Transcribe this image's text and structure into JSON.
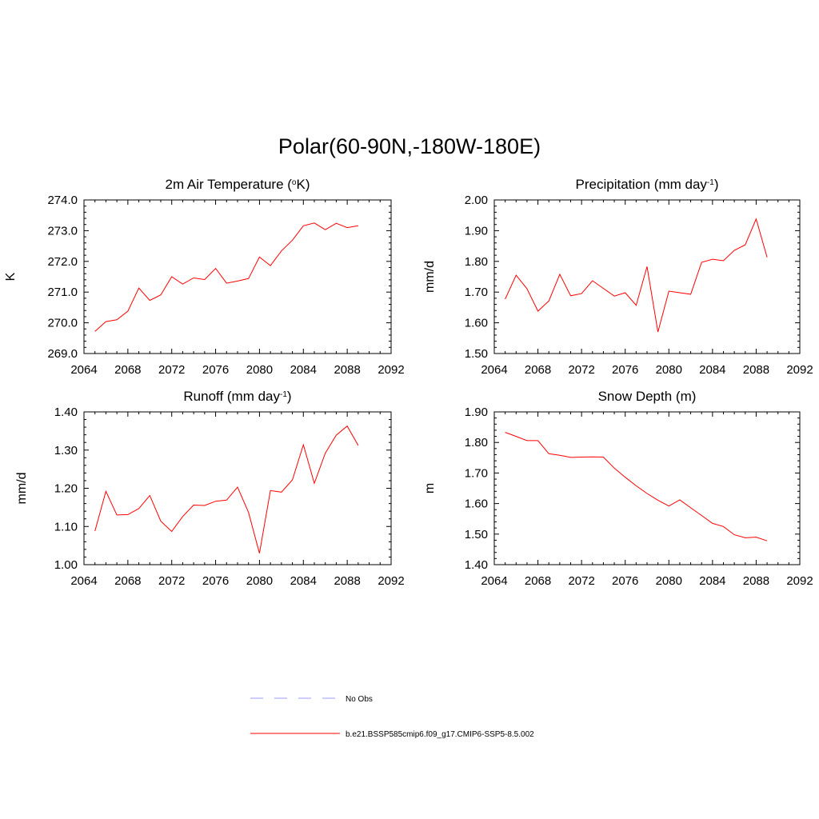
{
  "figure": {
    "title": "Polar(60-90N,-180W-180E)"
  },
  "legend": [
    {
      "label": "No Obs",
      "color": "#9b9bff",
      "dashed": true
    },
    {
      "label": "b.e21.BSSP585cmip6.f09_g17.CMIP6-SSP5-8.5.002",
      "color": "#ff0000",
      "dashed": false
    }
  ],
  "chart_data": [
    {
      "type": "line",
      "title": "2m Air Temperature (",
      "title_sup": "o",
      "title_after": "K)",
      "ylabel": "K",
      "xlim": [
        2064,
        2092
      ],
      "ylim": [
        269.0,
        274.0
      ],
      "xticks": [
        2064,
        2068,
        2072,
        2076,
        2080,
        2084,
        2088,
        2092
      ],
      "yticks": [
        "269.0",
        "270.0",
        "271.0",
        "272.0",
        "273.0",
        "274.0"
      ],
      "series": [
        {
          "color": "#ff0000",
          "x": [
            2065,
            2066,
            2067,
            2068,
            2069,
            2070,
            2071,
            2072,
            2073,
            2074,
            2075,
            2076,
            2077,
            2078,
            2079,
            2080,
            2081,
            2082,
            2083,
            2084,
            2085,
            2086,
            2087,
            2088,
            2089
          ],
          "y": [
            269.72,
            270.04,
            270.1,
            270.38,
            271.13,
            270.73,
            270.91,
            271.5,
            271.26,
            271.46,
            271.41,
            271.77,
            271.29,
            271.36,
            271.44,
            272.14,
            271.86,
            272.34,
            272.69,
            273.16,
            273.25,
            273.03,
            273.24,
            273.1,
            273.16
          ]
        }
      ]
    },
    {
      "type": "line",
      "title": "Precipitation (mm day",
      "title_sup": "-1",
      "title_after": ")",
      "ylabel": "mm/d",
      "xlim": [
        2064,
        2092
      ],
      "ylim": [
        1.5,
        2.0
      ],
      "xticks": [
        2064,
        2068,
        2072,
        2076,
        2080,
        2084,
        2088,
        2092
      ],
      "yticks": [
        "1.50",
        "1.60",
        "1.70",
        "1.80",
        "1.90",
        "2.00"
      ],
      "series": [
        {
          "color": "#ff0000",
          "x": [
            2065,
            2066,
            2067,
            2068,
            2069,
            2070,
            2071,
            2072,
            2073,
            2074,
            2075,
            2076,
            2077,
            2078,
            2079,
            2080,
            2081,
            2082,
            2083,
            2084,
            2085,
            2086,
            2087,
            2088,
            2089
          ],
          "y": [
            1.677,
            1.755,
            1.711,
            1.638,
            1.671,
            1.758,
            1.688,
            1.695,
            1.737,
            1.712,
            1.687,
            1.698,
            1.657,
            1.783,
            1.57,
            1.703,
            1.698,
            1.693,
            1.797,
            1.807,
            1.802,
            1.836,
            1.854,
            1.938,
            1.813
          ]
        }
      ]
    },
    {
      "type": "line",
      "title": "Runoff (mm day",
      "title_sup": "-1",
      "title_after": ")",
      "ylabel": "mm/d",
      "xlim": [
        2064,
        2092
      ],
      "ylim": [
        1.0,
        1.4
      ],
      "xticks": [
        2064,
        2068,
        2072,
        2076,
        2080,
        2084,
        2088,
        2092
      ],
      "yticks": [
        "1.00",
        "1.10",
        "1.20",
        "1.30",
        "1.40"
      ],
      "series": [
        {
          "color": "#ff0000",
          "x": [
            2065,
            2066,
            2067,
            2068,
            2069,
            2070,
            2071,
            2072,
            2073,
            2074,
            2075,
            2076,
            2077,
            2078,
            2079,
            2080,
            2081,
            2082,
            2083,
            2084,
            2085,
            2086,
            2087,
            2088,
            2089
          ],
          "y": [
            1.088,
            1.192,
            1.13,
            1.131,
            1.147,
            1.181,
            1.114,
            1.087,
            1.126,
            1.156,
            1.155,
            1.166,
            1.169,
            1.203,
            1.137,
            1.03,
            1.194,
            1.19,
            1.222,
            1.314,
            1.213,
            1.292,
            1.339,
            1.363,
            1.312
          ]
        }
      ]
    },
    {
      "type": "line",
      "title": "Snow Depth (m)",
      "title_sup": "",
      "title_after": "",
      "ylabel": "m",
      "xlim": [
        2064,
        2092
      ],
      "ylim": [
        1.4,
        1.9
      ],
      "xticks": [
        2064,
        2068,
        2072,
        2076,
        2080,
        2084,
        2088,
        2092
      ],
      "yticks": [
        "1.40",
        "1.50",
        "1.60",
        "1.70",
        "1.80",
        "1.90"
      ],
      "series": [
        {
          "color": "#ff0000",
          "x": [
            2065,
            2066,
            2067,
            2068,
            2069,
            2070,
            2071,
            2072,
            2073,
            2074,
            2075,
            2076,
            2077,
            2078,
            2079,
            2080,
            2081,
            2082,
            2083,
            2084,
            2085,
            2086,
            2087,
            2088,
            2089
          ],
          "y": [
            1.833,
            1.82,
            1.806,
            1.806,
            1.763,
            1.758,
            1.751,
            1.752,
            1.753,
            1.752,
            1.716,
            1.686,
            1.658,
            1.633,
            1.611,
            1.592,
            1.612,
            1.586,
            1.561,
            1.535,
            1.525,
            1.498,
            1.488,
            1.49,
            1.478
          ]
        }
      ]
    }
  ]
}
